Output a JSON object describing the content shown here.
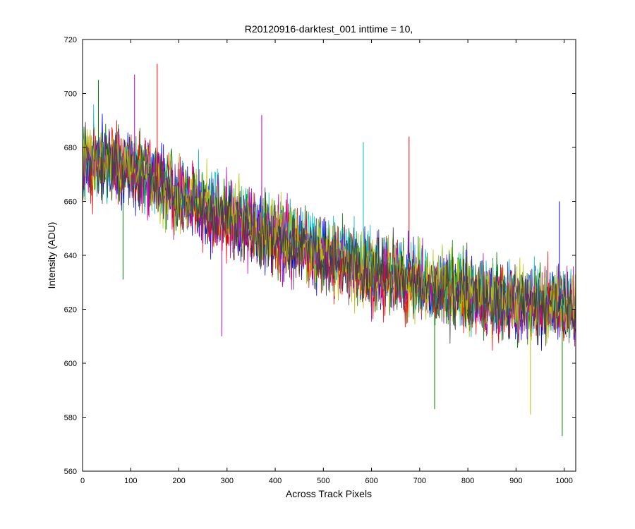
{
  "chart_data": {
    "type": "line",
    "title": "R20120916-darktest_001 inttime = 10,",
    "xlabel": "Across Track Pixels",
    "ylabel": "Intensity (ADU)",
    "xlim": [
      0,
      1024
    ],
    "ylim": [
      560,
      720
    ],
    "xticks": [
      0,
      100,
      200,
      300,
      400,
      500,
      600,
      700,
      800,
      900,
      1000
    ],
    "yticks": [
      560,
      580,
      600,
      620,
      640,
      660,
      680,
      700,
      720
    ],
    "grid": false,
    "legend": "none",
    "series_colors": [
      "#0000ff",
      "#008000",
      "#ff0000",
      "#00bfbf",
      "#bf00bf",
      "#bfbf00",
      "#404040"
    ],
    "series": [
      {
        "color": "#0000ff",
        "x": [
          0,
          25,
          50,
          100,
          150,
          200,
          300,
          400,
          500,
          600,
          700,
          800,
          900,
          1000,
          1023
        ],
        "values": [
          672,
          676,
          675,
          672,
          668,
          662,
          654,
          647,
          640,
          635,
          630,
          625,
          622,
          621,
          620
        ]
      },
      {
        "color": "#008000",
        "x": [
          0,
          25,
          50,
          100,
          150,
          200,
          300,
          400,
          500,
          600,
          700,
          800,
          900,
          1000,
          1023
        ],
        "values": [
          673,
          677,
          676,
          673,
          668,
          663,
          655,
          647,
          641,
          635,
          630,
          626,
          622,
          621,
          621
        ]
      },
      {
        "color": "#ff0000",
        "x": [
          0,
          25,
          50,
          100,
          150,
          200,
          300,
          400,
          500,
          600,
          700,
          800,
          900,
          1000,
          1023
        ],
        "values": [
          671,
          675,
          674,
          671,
          667,
          661,
          653,
          646,
          639,
          634,
          629,
          624,
          621,
          620,
          619
        ]
      },
      {
        "color": "#00bfbf",
        "x": [
          0,
          25,
          50,
          100,
          150,
          200,
          300,
          400,
          500,
          600,
          700,
          800,
          900,
          1000,
          1023
        ],
        "values": [
          674,
          678,
          676,
          674,
          669,
          664,
          656,
          648,
          642,
          636,
          631,
          627,
          623,
          622,
          622
        ]
      },
      {
        "color": "#bf00bf",
        "x": [
          0,
          25,
          50,
          100,
          150,
          200,
          300,
          400,
          500,
          600,
          700,
          800,
          900,
          1000,
          1023
        ],
        "values": [
          672,
          676,
          675,
          672,
          667,
          662,
          654,
          646,
          640,
          634,
          629,
          625,
          621,
          620,
          620
        ]
      },
      {
        "color": "#bfbf00",
        "x": [
          0,
          25,
          50,
          100,
          150,
          200,
          300,
          400,
          500,
          600,
          700,
          800,
          900,
          1000,
          1023
        ],
        "values": [
          673,
          677,
          675,
          673,
          668,
          663,
          655,
          647,
          641,
          635,
          630,
          626,
          622,
          621,
          621
        ]
      },
      {
        "color": "#404040",
        "x": [
          0,
          25,
          50,
          100,
          150,
          200,
          300,
          400,
          500,
          600,
          700,
          800,
          900,
          1000,
          1023
        ],
        "values": [
          671,
          675,
          674,
          671,
          667,
          661,
          653,
          646,
          639,
          634,
          629,
          624,
          621,
          620,
          619
        ]
      }
    ],
    "noise_amplitude": 12,
    "spikes": [
      {
        "x": 155,
        "y": 711,
        "color": "#ff0000"
      },
      {
        "x": 108,
        "y": 707,
        "color": "#bf00bf"
      },
      {
        "x": 33,
        "y": 705,
        "color": "#008000"
      },
      {
        "x": 372,
        "y": 692,
        "color": "#bf00bf"
      },
      {
        "x": 678,
        "y": 684,
        "color": "#ff0000"
      },
      {
        "x": 583,
        "y": 682,
        "color": "#00bfbf"
      },
      {
        "x": 731,
        "y": 583,
        "color": "#008000"
      },
      {
        "x": 930,
        "y": 581,
        "color": "#bfbf00"
      },
      {
        "x": 996,
        "y": 573,
        "color": "#008000"
      },
      {
        "x": 990,
        "y": 660,
        "color": "#0000ff"
      },
      {
        "x": 84,
        "y": 631,
        "color": "#008000"
      },
      {
        "x": 289,
        "y": 610,
        "color": "#bf00bf"
      }
    ]
  }
}
